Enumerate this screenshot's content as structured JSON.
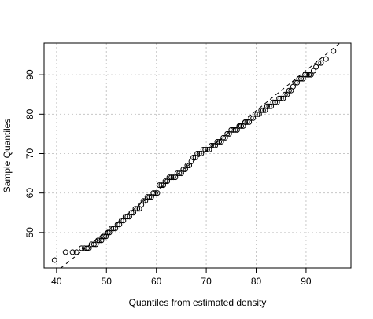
{
  "chart_data": {
    "type": "scatter",
    "title": "",
    "xlabel": "Quantiles from estimated density",
    "ylabel": "Sample Quantiles",
    "xlim": [
      37.5,
      99
    ],
    "ylim": [
      41,
      98
    ],
    "xticks": [
      40,
      50,
      60,
      70,
      80,
      90
    ],
    "yticks": [
      50,
      60,
      70,
      80,
      90
    ],
    "xtick_labels": [
      "40",
      "50",
      "60",
      "70",
      "80",
      "90"
    ],
    "ytick_labels": [
      "50",
      "60",
      "70",
      "80",
      "90"
    ],
    "grid": true,
    "reference_line": {
      "style": "dashed",
      "slope": 1.02,
      "intercept": -0.7
    },
    "colors": {
      "points": "#000000",
      "grid": "#c8c8c8",
      "line": "#000000"
    },
    "series": [
      {
        "marker": "open-circle",
        "x": [
          39.6,
          41.8,
          43.2,
          44.0,
          45.0,
          45.6,
          46.1,
          46.5,
          47.0,
          47.5,
          47.9,
          48.3,
          48.6,
          49.0,
          49.3,
          49.6,
          49.9,
          50.3,
          50.6,
          51.0,
          51.4,
          51.8,
          52.2,
          52.6,
          53.0,
          53.4,
          53.8,
          54.2,
          54.6,
          55.0,
          55.4,
          55.8,
          56.2,
          56.6,
          57.0,
          57.4,
          57.8,
          58.2,
          58.6,
          59.0,
          59.4,
          59.8,
          60.2,
          60.6,
          61.0,
          61.4,
          61.8,
          62.2,
          62.6,
          63.0,
          63.4,
          63.8,
          64.2,
          64.6,
          65.0,
          65.4,
          65.8,
          66.2,
          66.6,
          67.0,
          67.4,
          67.8,
          68.2,
          68.6,
          69.0,
          69.4,
          69.8,
          70.2,
          70.6,
          71.0,
          71.4,
          71.8,
          72.2,
          72.6,
          73.0,
          73.4,
          73.8,
          74.2,
          74.6,
          75.0,
          75.4,
          75.8,
          76.2,
          76.6,
          77.0,
          77.4,
          77.8,
          78.2,
          78.6,
          79.0,
          79.4,
          79.8,
          80.2,
          80.6,
          81.0,
          81.4,
          81.8,
          82.2,
          82.6,
          83.0,
          83.4,
          83.8,
          84.2,
          84.6,
          85.0,
          85.4,
          85.8,
          86.2,
          86.6,
          87.0,
          87.4,
          87.8,
          88.2,
          88.6,
          89.0,
          89.4,
          89.8,
          90.2,
          90.6,
          91.0,
          91.5,
          92.0,
          92.5,
          93.0,
          94.0,
          95.5
        ],
        "y": [
          43,
          45,
          45,
          45,
          46,
          46,
          46,
          46,
          47,
          47,
          47,
          48,
          48,
          48,
          49,
          49,
          49,
          50,
          50,
          51,
          51,
          51,
          52,
          52,
          53,
          53,
          54,
          54,
          54,
          55,
          55,
          56,
          56,
          56,
          57,
          58,
          58,
          59,
          59,
          59,
          60,
          60,
          60,
          62,
          62,
          62,
          63,
          63,
          64,
          64,
          64,
          64,
          65,
          65,
          65,
          66,
          66,
          67,
          67,
          68,
          69,
          69,
          70,
          70,
          70,
          71,
          71,
          71,
          71,
          72,
          72,
          72,
          73,
          73,
          73,
          74,
          74,
          75,
          75,
          76,
          76,
          76,
          76,
          77,
          77,
          77,
          78,
          78,
          78,
          79,
          79,
          80,
          80,
          80,
          81,
          81,
          81,
          82,
          82,
          82,
          83,
          83,
          83,
          84,
          84,
          84,
          85,
          85,
          86,
          86,
          87,
          88,
          88,
          89,
          89,
          89,
          90,
          90,
          90,
          90,
          91,
          92,
          93,
          93,
          94,
          96
        ]
      }
    ]
  }
}
